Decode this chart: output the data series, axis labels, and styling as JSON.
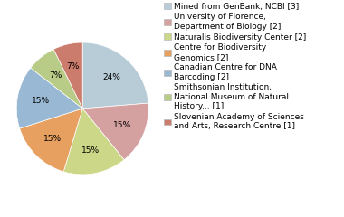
{
  "labels": [
    "Mined from GenBank, NCBI [3]",
    "University of Florence,\nDepartment of Biology [2]",
    "Naturalis Biodiversity Center [2]",
    "Centre for Biodiversity\nGenomics [2]",
    "Canadian Centre for DNA\nBarcoding [2]",
    "Smithsonian Institution,\nNational Museum of Natural\nHistory... [1]",
    "Slovenian Academy of Sciences\nand Arts, Research Centre [1]"
  ],
  "values": [
    23,
    15,
    15,
    15,
    15,
    7,
    7
  ],
  "colors": [
    "#b8ccd8",
    "#d4a0a0",
    "#ccd888",
    "#e8a060",
    "#98b8d4",
    "#b8cc88",
    "#cc7c6c"
  ],
  "startangle": 90,
  "background_color": "#ffffff",
  "text_color": "#000000",
  "fontsize": 6.5
}
